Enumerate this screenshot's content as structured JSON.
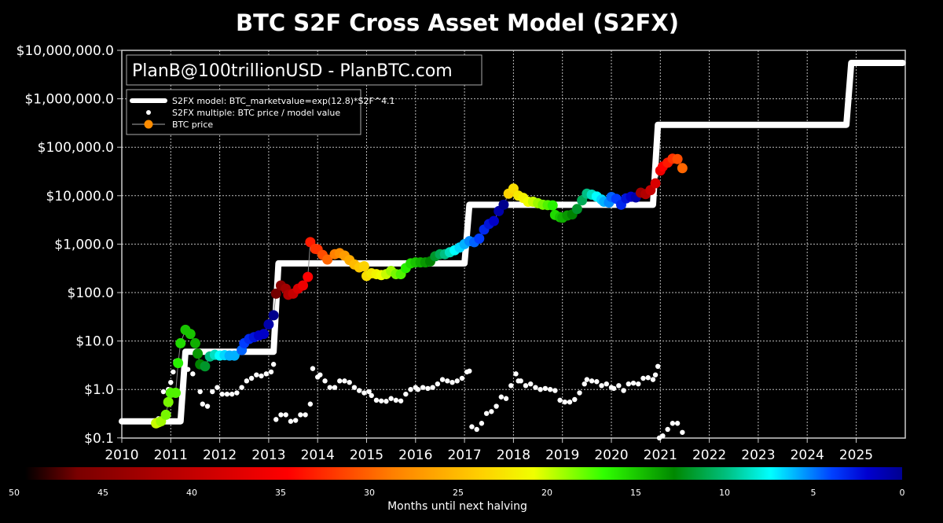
{
  "chart_data": {
    "type": "scatter",
    "title": "BTC S2F Cross Asset Model (S2FX)",
    "watermark": "PlanB@100trillionUSD  -  PlanBTC.com",
    "xlabel": "",
    "ylabel": "",
    "yscale": "log",
    "ylim": [
      0.1,
      10000000
    ],
    "xlim": [
      2010,
      2026
    ],
    "grid": true,
    "legend_position": "upper left",
    "y_ticks": [
      {
        "value": 10000000,
        "label": "$10,000,000.0"
      },
      {
        "value": 1000000,
        "label": "$1,000,000.0"
      },
      {
        "value": 100000,
        "label": "$100,000.0"
      },
      {
        "value": 10000,
        "label": "$10,000.0"
      },
      {
        "value": 1000,
        "label": "$1,000.0"
      },
      {
        "value": 100,
        "label": "$100.0"
      },
      {
        "value": 10,
        "label": "$10.0"
      },
      {
        "value": 1,
        "label": "$1.0"
      },
      {
        "value": 0.1,
        "label": "$0.1"
      }
    ],
    "x_ticks": [
      "2010",
      "2011",
      "2012",
      "2013",
      "2014",
      "2015",
      "2016",
      "2017",
      "2018",
      "2019",
      "2020",
      "2021",
      "2022",
      "2023",
      "2024",
      "2025"
    ],
    "legend": [
      {
        "label": "S2FX model: BTC_marketvalue=exp(12.8)*S2F^4.1",
        "style": "thick-white-line"
      },
      {
        "label": "S2FX multiple: BTC price / model value",
        "style": "white-dot"
      },
      {
        "label": "BTC price",
        "style": "orange-dot-line"
      }
    ],
    "colorbar": {
      "label": "Months until next halving",
      "ticks": [
        "50",
        "45",
        "40",
        "35",
        "30",
        "25",
        "20",
        "15",
        "10",
        "5",
        "0"
      ],
      "colormap": "jet-like (dark red at 50 → red → orange → yellow → green → cyan → blue → dark blue at 0)"
    },
    "series": [
      {
        "name": "S2FX model",
        "type": "step",
        "points": [
          [
            2010.0,
            0.22
          ],
          [
            2011.2,
            0.22
          ],
          [
            2011.3,
            6
          ],
          [
            2013.1,
            6
          ],
          [
            2013.2,
            400
          ],
          [
            2017.0,
            400
          ],
          [
            2017.1,
            6500
          ],
          [
            2020.85,
            6500
          ],
          [
            2020.95,
            290000
          ],
          [
            2024.8,
            290000
          ],
          [
            2024.9,
            5500000
          ],
          [
            2025.95,
            5500000
          ]
        ]
      },
      {
        "name": "BTC price",
        "type": "scatter-line",
        "points": [
          [
            2010.7,
            0.2,
            24
          ],
          [
            2010.75,
            0.21,
            24
          ],
          [
            2010.8,
            0.22,
            23
          ],
          [
            2010.9,
            0.3,
            22
          ],
          [
            2010.95,
            0.55,
            22
          ],
          [
            2011.0,
            0.85,
            21
          ],
          [
            2011.1,
            0.85,
            21
          ],
          [
            2011.15,
            3.5,
            20
          ],
          [
            2011.2,
            9,
            19
          ],
          [
            2011.3,
            17,
            18
          ],
          [
            2011.4,
            14,
            18
          ],
          [
            2011.5,
            9,
            17
          ],
          [
            2011.55,
            5.5,
            16
          ],
          [
            2011.6,
            3.3,
            15
          ],
          [
            2011.7,
            3,
            14
          ],
          [
            2011.8,
            4.8,
            12
          ],
          [
            2011.9,
            5.2,
            11
          ],
          [
            2012.0,
            5,
            10
          ],
          [
            2012.1,
            5.1,
            9
          ],
          [
            2012.2,
            5,
            8
          ],
          [
            2012.3,
            5,
            8
          ],
          [
            2012.45,
            6.5,
            6
          ],
          [
            2012.5,
            9,
            5
          ],
          [
            2012.6,
            11,
            4
          ],
          [
            2012.7,
            12,
            3
          ],
          [
            2012.8,
            13,
            2
          ],
          [
            2012.9,
            14,
            2
          ],
          [
            2013.0,
            22,
            1
          ],
          [
            2013.1,
            34,
            0
          ],
          [
            2013.15,
            95,
            47
          ],
          [
            2013.25,
            140,
            46
          ],
          [
            2013.35,
            120,
            45
          ],
          [
            2013.4,
            90,
            44
          ],
          [
            2013.5,
            95,
            43
          ],
          [
            2013.6,
            120,
            42
          ],
          [
            2013.7,
            140,
            41
          ],
          [
            2013.8,
            210,
            40
          ],
          [
            2013.85,
            1100,
            39
          ],
          [
            2013.95,
            800,
            38
          ],
          [
            2014.0,
            780,
            38
          ],
          [
            2014.1,
            600,
            37
          ],
          [
            2014.2,
            480,
            36
          ],
          [
            2014.35,
            620,
            35
          ],
          [
            2014.45,
            650,
            34
          ],
          [
            2014.55,
            580,
            33
          ],
          [
            2014.65,
            470,
            32
          ],
          [
            2014.75,
            380,
            31
          ],
          [
            2014.85,
            330,
            30
          ],
          [
            2014.95,
            350,
            29
          ],
          [
            2015.0,
            220,
            28
          ],
          [
            2015.1,
            250,
            27
          ],
          [
            2015.2,
            240,
            26
          ],
          [
            2015.3,
            230,
            25
          ],
          [
            2015.4,
            240,
            24
          ],
          [
            2015.5,
            280,
            23
          ],
          [
            2015.6,
            240,
            22
          ],
          [
            2015.7,
            240,
            21
          ],
          [
            2015.8,
            320,
            20
          ],
          [
            2015.9,
            400,
            19
          ],
          [
            2016.0,
            420,
            18
          ],
          [
            2016.1,
            420,
            17
          ],
          [
            2016.2,
            420,
            16
          ],
          [
            2016.3,
            440,
            15
          ],
          [
            2016.4,
            560,
            14
          ],
          [
            2016.5,
            620,
            13
          ],
          [
            2016.6,
            620,
            12
          ],
          [
            2016.7,
            680,
            11
          ],
          [
            2016.8,
            750,
            10
          ],
          [
            2016.9,
            850,
            9
          ],
          [
            2017.0,
            1000,
            8
          ],
          [
            2017.1,
            1150,
            7
          ],
          [
            2017.2,
            1100,
            6
          ],
          [
            2017.3,
            1300,
            5
          ],
          [
            2017.4,
            2000,
            4
          ],
          [
            2017.5,
            2600,
            3
          ],
          [
            2017.6,
            3000,
            2
          ],
          [
            2017.7,
            4800,
            1
          ],
          [
            2017.8,
            6500,
            0
          ],
          [
            2017.9,
            11000,
            29
          ],
          [
            2018.0,
            14000,
            28
          ],
          [
            2018.1,
            10000,
            27
          ],
          [
            2018.2,
            9000,
            26
          ],
          [
            2018.3,
            7500,
            25
          ],
          [
            2018.4,
            7500,
            24
          ],
          [
            2018.5,
            7000,
            23
          ],
          [
            2018.6,
            6500,
            22
          ],
          [
            2018.7,
            6400,
            21
          ],
          [
            2018.8,
            6300,
            20
          ],
          [
            2018.85,
            4000,
            19
          ],
          [
            2018.95,
            3600,
            18
          ],
          [
            2019.0,
            3500,
            17
          ],
          [
            2019.1,
            3900,
            16
          ],
          [
            2019.2,
            4100,
            15
          ],
          [
            2019.3,
            5300,
            14
          ],
          [
            2019.4,
            8000,
            13
          ],
          [
            2019.5,
            11000,
            12
          ],
          [
            2019.6,
            10500,
            11
          ],
          [
            2019.7,
            9600,
            10
          ],
          [
            2019.8,
            8300,
            9
          ],
          [
            2019.85,
            7500,
            8
          ],
          [
            2019.95,
            7200,
            7
          ],
          [
            2020.0,
            9400,
            6
          ],
          [
            2020.1,
            8600,
            5
          ],
          [
            2020.2,
            6500,
            4
          ],
          [
            2020.3,
            8800,
            3
          ],
          [
            2020.4,
            9500,
            2
          ],
          [
            2020.5,
            9200,
            1
          ],
          [
            2020.6,
            11500,
            45
          ],
          [
            2020.7,
            10800,
            44
          ],
          [
            2020.8,
            13000,
            43
          ],
          [
            2020.9,
            18000,
            42
          ],
          [
            2021.0,
            33000,
            41
          ],
          [
            2021.05,
            40000,
            40
          ],
          [
            2021.15,
            48000,
            39
          ],
          [
            2021.25,
            58000,
            38
          ],
          [
            2021.35,
            57000,
            37
          ],
          [
            2021.45,
            37000,
            36
          ]
        ]
      },
      {
        "name": "S2FX multiple",
        "type": "scatter",
        "points": [
          [
            2010.7,
            0.23
          ],
          [
            2010.75,
            0.25
          ],
          [
            2010.85,
            0.9
          ],
          [
            2010.95,
            1.0
          ],
          [
            2011.0,
            1.4
          ],
          [
            2011.05,
            2.3
          ],
          [
            2011.1,
            3.8
          ],
          [
            2011.15,
            3.6
          ],
          [
            2011.25,
            1.5
          ],
          [
            2011.35,
            2.6
          ],
          [
            2011.45,
            2.1
          ],
          [
            2011.6,
            0.9
          ],
          [
            2011.65,
            0.5
          ],
          [
            2011.75,
            0.45
          ],
          [
            2011.85,
            0.9
          ],
          [
            2011.95,
            1.1
          ],
          [
            2012.05,
            0.8
          ],
          [
            2012.15,
            0.8
          ],
          [
            2012.25,
            0.8
          ],
          [
            2012.35,
            0.85
          ],
          [
            2012.45,
            1.1
          ],
          [
            2012.55,
            1.5
          ],
          [
            2012.65,
            1.7
          ],
          [
            2012.75,
            2.0
          ],
          [
            2012.85,
            1.9
          ],
          [
            2012.95,
            2.1
          ],
          [
            2013.05,
            2.3
          ],
          [
            2013.1,
            3.3
          ],
          [
            2013.15,
            0.24
          ],
          [
            2013.25,
            0.3
          ],
          [
            2013.35,
            0.3
          ],
          [
            2013.45,
            0.22
          ],
          [
            2013.55,
            0.23
          ],
          [
            2013.65,
            0.3
          ],
          [
            2013.75,
            0.3
          ],
          [
            2013.85,
            0.5
          ],
          [
            2013.9,
            2.7
          ],
          [
            2014.0,
            1.8
          ],
          [
            2014.05,
            2.0
          ],
          [
            2014.15,
            1.5
          ],
          [
            2014.25,
            1.1
          ],
          [
            2014.35,
            1.1
          ],
          [
            2014.45,
            1.5
          ],
          [
            2014.55,
            1.5
          ],
          [
            2014.65,
            1.4
          ],
          [
            2014.75,
            1.1
          ],
          [
            2014.85,
            0.95
          ],
          [
            2014.95,
            0.85
          ],
          [
            2015.05,
            0.9
          ],
          [
            2015.1,
            0.75
          ],
          [
            2015.2,
            0.6
          ],
          [
            2015.3,
            0.58
          ],
          [
            2015.4,
            0.57
          ],
          [
            2015.5,
            0.65
          ],
          [
            2015.6,
            0.6
          ],
          [
            2015.7,
            0.58
          ],
          [
            2015.8,
            0.8
          ],
          [
            2015.9,
            1.0
          ],
          [
            2016.0,
            1.1
          ],
          [
            2016.05,
            1.0
          ],
          [
            2016.15,
            1.1
          ],
          [
            2016.25,
            1.05
          ],
          [
            2016.35,
            1.1
          ],
          [
            2016.45,
            1.3
          ],
          [
            2016.55,
            1.6
          ],
          [
            2016.65,
            1.5
          ],
          [
            2016.75,
            1.4
          ],
          [
            2016.85,
            1.5
          ],
          [
            2016.95,
            1.7
          ],
          [
            2017.05,
            2.3
          ],
          [
            2017.1,
            2.4
          ],
          [
            2017.15,
            0.17
          ],
          [
            2017.25,
            0.15
          ],
          [
            2017.35,
            0.2
          ],
          [
            2017.45,
            0.32
          ],
          [
            2017.55,
            0.35
          ],
          [
            2017.65,
            0.45
          ],
          [
            2017.75,
            0.7
          ],
          [
            2017.85,
            0.65
          ],
          [
            2017.95,
            1.2
          ],
          [
            2018.05,
            2.1
          ],
          [
            2018.1,
            1.5
          ],
          [
            2018.15,
            1.5
          ],
          [
            2018.25,
            1.2
          ],
          [
            2018.35,
            1.3
          ],
          [
            2018.45,
            1.1
          ],
          [
            2018.55,
            1.0
          ],
          [
            2018.65,
            1.05
          ],
          [
            2018.75,
            1.0
          ],
          [
            2018.85,
            0.95
          ],
          [
            2018.95,
            0.6
          ],
          [
            2019.05,
            0.55
          ],
          [
            2019.15,
            0.55
          ],
          [
            2019.25,
            0.62
          ],
          [
            2019.35,
            0.85
          ],
          [
            2019.45,
            1.3
          ],
          [
            2019.5,
            1.6
          ],
          [
            2019.6,
            1.5
          ],
          [
            2019.7,
            1.45
          ],
          [
            2019.8,
            1.2
          ],
          [
            2019.9,
            1.3
          ],
          [
            2020.0,
            1.1
          ],
          [
            2020.05,
            1.05
          ],
          [
            2020.15,
            1.2
          ],
          [
            2020.25,
            0.95
          ],
          [
            2020.35,
            1.3
          ],
          [
            2020.45,
            1.35
          ],
          [
            2020.55,
            1.3
          ],
          [
            2020.65,
            1.7
          ],
          [
            2020.75,
            1.75
          ],
          [
            2020.85,
            1.6
          ],
          [
            2020.9,
            2.0
          ],
          [
            2020.95,
            3.0
          ],
          [
            2020.98,
            0.1
          ],
          [
            2021.05,
            0.11
          ],
          [
            2021.15,
            0.15
          ],
          [
            2021.25,
            0.2
          ],
          [
            2021.35,
            0.2
          ],
          [
            2021.45,
            0.13
          ]
        ]
      }
    ]
  }
}
